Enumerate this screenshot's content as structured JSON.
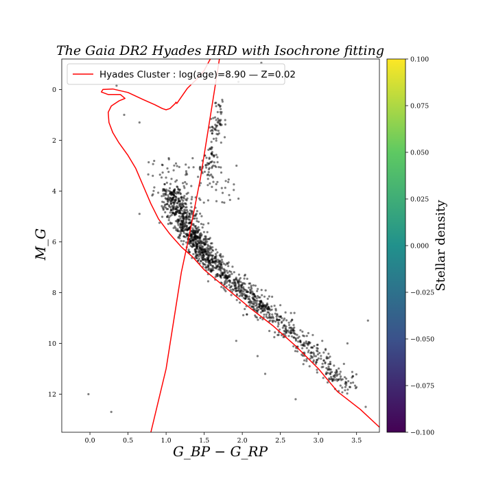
{
  "chart_data": {
    "type": "scatter",
    "title": "The Gaia DR2 Hyades HRD with Isochrone fitting",
    "xlabel": "G_BP − G_RP",
    "ylabel": "M_G",
    "xlim": [
      -0.37,
      3.8
    ],
    "ylim": [
      13.5,
      -1.2
    ],
    "y_inverted": true,
    "xticks": [
      0.0,
      0.5,
      1.0,
      1.5,
      2.0,
      2.5,
      3.0,
      3.5
    ],
    "xtick_labels": [
      "0.0",
      "0.5",
      "1.0",
      "1.5",
      "2.0",
      "2.5",
      "3.0",
      "3.5"
    ],
    "yticks": [
      0,
      2,
      4,
      6,
      8,
      10,
      12
    ],
    "ytick_labels": [
      "0",
      "2",
      "4",
      "6",
      "8",
      "10",
      "12"
    ],
    "grid": false,
    "legend": {
      "placement": "upper-left",
      "entries": [
        {
          "label": "Hyades Cluster : log(age)=8.90 — Z=0.02",
          "color": "#ff0000"
        }
      ]
    },
    "series": [
      {
        "kind": "scatter",
        "color": "#000000",
        "alpha": 0.5,
        "main_sequence_ridge": [
          [
            1.05,
            4.0
          ],
          [
            1.15,
            4.6
          ],
          [
            1.25,
            5.2
          ],
          [
            1.35,
            5.8
          ],
          [
            1.45,
            6.3
          ],
          [
            1.6,
            6.8
          ],
          [
            1.8,
            7.4
          ],
          [
            2.0,
            7.9
          ],
          [
            2.2,
            8.4
          ],
          [
            2.4,
            8.9
          ],
          [
            2.6,
            9.4
          ],
          [
            2.8,
            10.0
          ],
          [
            3.0,
            10.6
          ],
          [
            3.2,
            11.2
          ],
          [
            3.4,
            11.8
          ]
        ],
        "giant_clump": [
          [
            1.65,
            1.7
          ],
          [
            1.7,
            1.0
          ],
          [
            1.6,
            2.6
          ],
          [
            1.55,
            3.2
          ]
        ],
        "outliers": [
          [
            -0.02,
            12.0
          ],
          [
            0.28,
            12.7
          ],
          [
            0.35,
            -0.15
          ],
          [
            0.65,
            4.9
          ],
          [
            0.65,
            1.3
          ],
          [
            1.92,
            9.9
          ],
          [
            2.2,
            10.5
          ],
          [
            2.3,
            11.2
          ],
          [
            3.05,
            9.9
          ],
          [
            3.38,
            10.0
          ],
          [
            3.45,
            11.3
          ],
          [
            3.65,
            9.1
          ],
          [
            3.62,
            12.5
          ],
          [
            2.7,
            12.2
          ],
          [
            2.25,
            -1.05
          ],
          [
            1.95,
            -0.3
          ],
          [
            0.45,
            1.0
          ]
        ]
      },
      {
        "kind": "line",
        "name": "Hyades Cluster : log(age)=8.90 — Z=0.02",
        "color": "#ff0000",
        "segments": [
          [
            [
              3.8,
              13.3
            ],
            [
              3.55,
              12.6
            ],
            [
              3.25,
              11.9
            ],
            [
              3.0,
              11.0
            ],
            [
              2.7,
              10.1
            ],
            [
              2.4,
              9.3
            ],
            [
              2.1,
              8.6
            ],
            [
              1.9,
              8.1
            ],
            [
              1.7,
              7.6
            ],
            [
              1.5,
              7.1
            ],
            [
              1.35,
              6.6
            ],
            [
              1.2,
              6.2
            ],
            [
              1.05,
              5.7
            ],
            [
              0.9,
              5.1
            ],
            [
              0.8,
              4.5
            ],
            [
              0.7,
              3.8
            ],
            [
              0.6,
              3.1
            ],
            [
              0.5,
              2.6
            ],
            [
              0.38,
              2.1
            ],
            [
              0.3,
              1.7
            ],
            [
              0.25,
              1.3
            ],
            [
              0.24,
              0.9
            ],
            [
              0.28,
              0.65
            ],
            [
              0.38,
              0.45
            ],
            [
              0.46,
              0.35
            ],
            [
              0.4,
              0.2
            ],
            [
              0.24,
              0.2
            ],
            [
              0.15,
              0.1
            ],
            [
              0.17,
              0.0
            ],
            [
              0.3,
              -0.02
            ],
            [
              0.5,
              0.12
            ],
            [
              0.7,
              0.4
            ],
            [
              0.85,
              0.6
            ],
            [
              0.95,
              0.75
            ],
            [
              1.0,
              0.8
            ],
            [
              1.05,
              0.75
            ],
            [
              1.12,
              0.55
            ],
            [
              1.13,
              0.5
            ],
            [
              1.14,
              0.55
            ],
            [
              1.28,
              -0.05
            ],
            [
              1.4,
              -0.4
            ],
            [
              1.5,
              -0.75
            ],
            [
              1.58,
              -1.2
            ]
          ],
          [
            [
              0.8,
              13.5
            ],
            [
              1.0,
              11.0
            ],
            [
              1.2,
              7.2
            ],
            [
              1.3,
              5.8
            ],
            [
              1.45,
              3.5
            ],
            [
              1.6,
              0.7
            ],
            [
              1.7,
              -1.2
            ]
          ]
        ]
      }
    ],
    "colorbar": {
      "label": "Stellar density",
      "range": [
        -0.1,
        0.1
      ],
      "ticks": [
        0.1,
        0.075,
        0.05,
        0.025,
        0.0,
        -0.025,
        -0.05,
        -0.075,
        -0.1
      ],
      "tick_labels": [
        "0.100",
        "0.075",
        "0.050",
        "0.025",
        "0.000",
        "−0.025",
        "−0.050",
        "−0.075",
        "−0.100"
      ],
      "colormap": "viridis",
      "stops": [
        "#440154",
        "#3b528b",
        "#21918c",
        "#5ec962",
        "#fde725"
      ]
    }
  }
}
